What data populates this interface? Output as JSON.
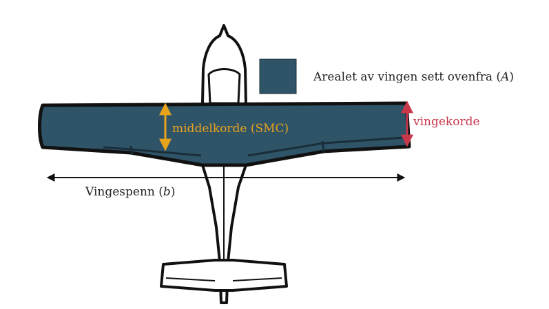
{
  "legend": {
    "text": "Arealet av vingen sett ovenfra",
    "symbol": "A",
    "swatch_color": "#2f5468"
  },
  "labels": {
    "mean_chord": "middelkorde (SMC)",
    "chord": "vingekorde",
    "span_text": "Vingespenn",
    "span_symbol": "b"
  },
  "colors": {
    "wing_fill": "#2f5468",
    "mean_chord_arrow": "#e8a31c",
    "chord_arrow": "#c8374a",
    "outline": "#111111",
    "span_arrow": "#111111"
  }
}
